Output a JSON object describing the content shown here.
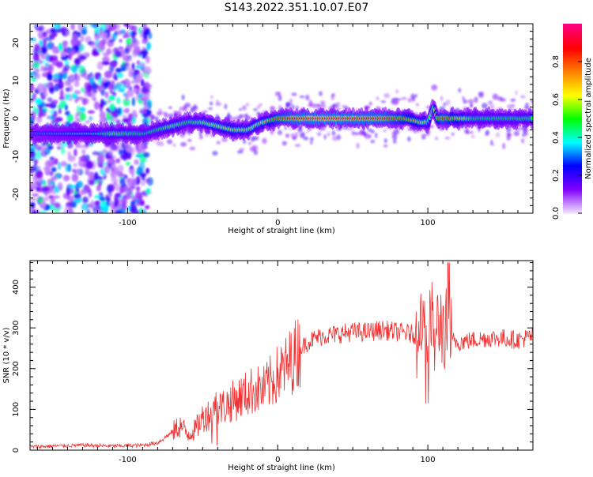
{
  "title": "S143.2022.351.10.07.E07",
  "chart_data": [
    {
      "type": "heatmap",
      "xlabel": "Height of straight line (km)",
      "ylabel": "Frequency (Hz)",
      "xlim": [
        -165,
        170
      ],
      "ylim": [
        -25,
        25
      ],
      "xticks": [
        -100,
        0,
        100
      ],
      "yticks": [
        -20,
        -10,
        0,
        10,
        20
      ],
      "xtick_labels": [
        "-100",
        "0",
        "100"
      ],
      "ytick_labels": [
        "-20",
        "-10",
        "0",
        "10",
        "20"
      ],
      "colorbar": {
        "label": "Normalized spectral amplitude",
        "range": [
          0,
          1
        ],
        "ticks": [
          0.0,
          0.2,
          0.4,
          0.6,
          0.8
        ],
        "tick_labels": [
          "0.0",
          "0.2",
          "0.4",
          "0.6",
          "0.8"
        ],
        "colormap": [
          "#f0e0ff",
          "#8000ff",
          "#0000ff",
          "#00ffff",
          "#00ff00",
          "#ffff00",
          "#ff8000",
          "#ff0000",
          "#ff0080"
        ]
      },
      "ridge": {
        "x": [
          -165,
          -140,
          -120,
          -110,
          -95,
          -88,
          -80,
          -70,
          -60,
          -50,
          -40,
          -30,
          -20,
          -10,
          0,
          10,
          30,
          50,
          70,
          85,
          95,
          100,
          104,
          106,
          110,
          130,
          150,
          170
        ],
        "y": [
          -4,
          -4,
          -4,
          -4,
          -4,
          -4,
          -3,
          -2,
          -1,
          -1,
          -2,
          -3,
          -3,
          -1,
          0,
          0,
          0,
          0,
          0,
          0,
          -1,
          -1,
          3,
          0,
          0,
          0,
          0,
          0
        ],
        "amplitude": [
          0.3,
          0.35,
          0.4,
          0.55,
          0.5,
          0.45,
          0.5,
          0.55,
          0.5,
          0.55,
          0.6,
          0.65,
          0.6,
          0.6,
          0.8,
          0.9,
          0.95,
          0.92,
          0.9,
          0.75,
          0.65,
          0.55,
          0.6,
          0.7,
          0.85,
          0.5,
          0.5,
          0.5
        ]
      }
    },
    {
      "type": "line",
      "xlabel": "Height of straight line (km)",
      "ylabel": "SNR (10 * v/v)",
      "xlim": [
        -165,
        170
      ],
      "ylim": [
        0,
        465
      ],
      "xticks": [
        -100,
        0,
        100
      ],
      "yticks": [
        0,
        100,
        200,
        300,
        400
      ],
      "xtick_labels": [
        "-100",
        "0",
        "100"
      ],
      "ytick_labels": [
        "0",
        "100",
        "200",
        "300",
        "400"
      ],
      "color": "#f03030",
      "series": [
        {
          "x": [
            -165,
            -150,
            -130,
            -110,
            -90,
            -80,
            -70,
            -65,
            -60,
            -55,
            -50,
            -45,
            -40,
            -35,
            -30,
            -25,
            -20,
            -15,
            -10,
            -5,
            0,
            5,
            10,
            15,
            20,
            25,
            30,
            40,
            50,
            60,
            70,
            80,
            90,
            95,
            98,
            100,
            102,
            105,
            108,
            110,
            112,
            114,
            116,
            120,
            130,
            140,
            150,
            160,
            170
          ],
          "y": [
            8,
            10,
            12,
            10,
            12,
            18,
            45,
            60,
            40,
            50,
            80,
            90,
            100,
            110,
            120,
            130,
            140,
            150,
            145,
            165,
            185,
            200,
            225,
            250,
            265,
            275,
            280,
            285,
            290,
            290,
            295,
            290,
            285,
            280,
            300,
            250,
            330,
            260,
            320,
            300,
            280,
            290,
            270,
            265,
            270,
            275,
            275,
            270,
            280
          ]
        }
      ]
    }
  ]
}
